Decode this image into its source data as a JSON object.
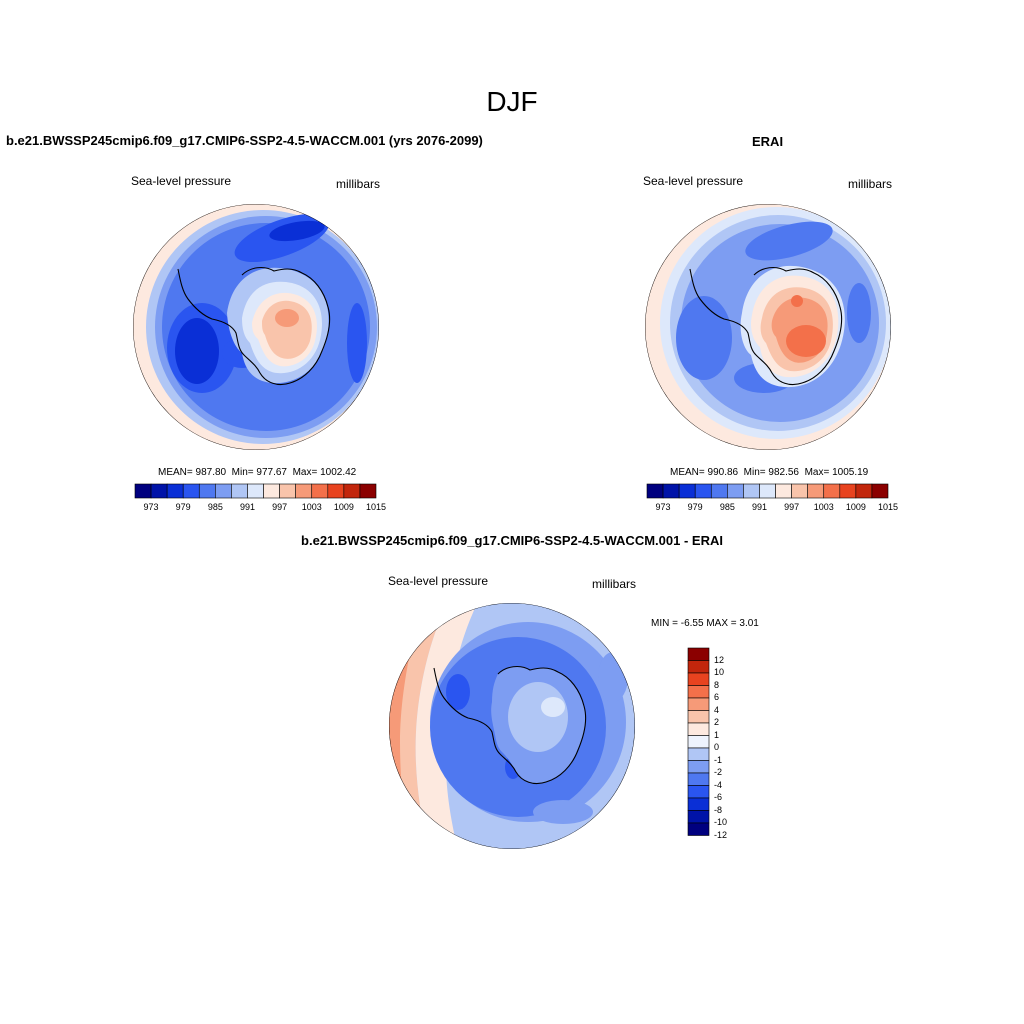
{
  "figure": {
    "season": "DJF"
  },
  "panels": {
    "model": {
      "title": "b.e21.BWSSP245cmip6.f09_g17.CMIP6-SSP2-4.5-WACCM.001 (yrs 2076-2099)",
      "variable": "Sea-level pressure",
      "units": "millibars",
      "mean_label": "MEAN=",
      "mean": "987.80",
      "min_label": "Min=",
      "min": "977.67",
      "max_label": "Max=",
      "max": "1002.42"
    },
    "obs": {
      "title": "ERAI",
      "variable": "Sea-level pressure",
      "units": "millibars",
      "mean_label": "MEAN=",
      "mean": "990.86",
      "min_label": "Min=",
      "min": "982.56",
      "max_label": "Max=",
      "max": "1005.19"
    },
    "diff": {
      "title": "b.e21.BWSSP245cmip6.f09_g17.CMIP6-SSP2-4.5-WACCM.001 - ERAI",
      "variable": "Sea-level pressure",
      "units": "millibars",
      "min_label": "MIN =",
      "min": "-6.55",
      "max_label": "MAX =",
      "max": "3.01"
    }
  },
  "colorbars": {
    "abs": {
      "colors": [
        "#00007f",
        "#0013a8",
        "#0a2fd6",
        "#2a55f0",
        "#4f78f0",
        "#7d9df2",
        "#b0c6f5",
        "#dde8fb",
        "#fde9df",
        "#f9c4ab",
        "#f69a78",
        "#f3704a",
        "#e8431f",
        "#c2260c",
        "#8b0000"
      ],
      "tick_labels": [
        "973",
        "979",
        "985",
        "991",
        "997",
        "1003",
        "1009",
        "1015"
      ]
    },
    "diff": {
      "colors": [
        "#00007f",
        "#0013a8",
        "#0a2fd6",
        "#2a55f0",
        "#4f78f0",
        "#7d9df2",
        "#b0c6f5",
        "#eef3fd",
        "#fde9df",
        "#f9c4ab",
        "#f69a78",
        "#f3704a",
        "#e8431f",
        "#c2260c",
        "#8b0000"
      ],
      "tick_labels": [
        "12",
        "10",
        "8",
        "6",
        "4",
        "2",
        "1",
        "0",
        "-1",
        "-2",
        "-4",
        "-6",
        "-8",
        "-10",
        "-12"
      ]
    }
  }
}
